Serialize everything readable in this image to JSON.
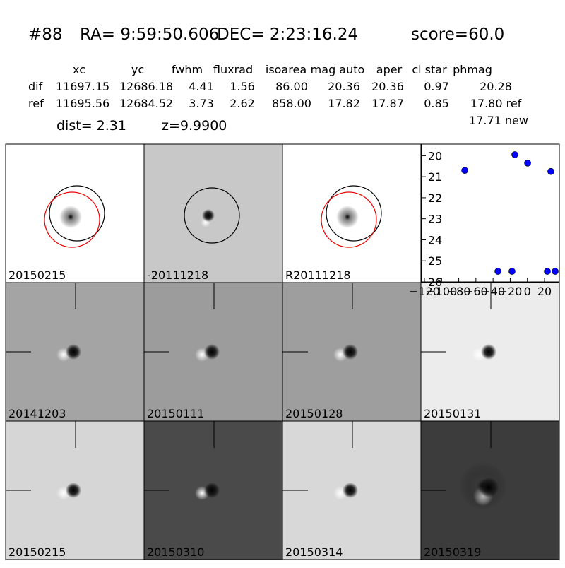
{
  "header": {
    "id": "#88",
    "ra": "RA= 9:59:50.606",
    "dec": "DEC= 2:23:16.24",
    "score": "score=60.0"
  },
  "table": {
    "columns": [
      "xc",
      "yc",
      "fwhm",
      "fluxrad",
      "isoarea",
      "mag auto",
      "aper",
      "cl star",
      "phmag"
    ],
    "rows": [
      [
        "dif",
        "11697.15",
        "12686.18",
        "4.41",
        "1.56",
        "86.00",
        "20.36",
        "20.36",
        "0.97",
        "20.28"
      ],
      [
        "ref",
        "11695.56",
        "12684.52",
        "3.73",
        "2.62",
        "858.00",
        "17.82",
        "17.87",
        "0.85",
        "17.80 ref"
      ]
    ]
  },
  "new_mag": "17.71 new",
  "dist": "dist=  2.31",
  "z": "z=9.9900",
  "stamps": [
    "20150215",
    "-20111218",
    "R20111218",
    "20141203",
    "20150111",
    "20150128",
    "20150131",
    "20150215",
    "20150310",
    "20150314",
    "20150319"
  ],
  "chart_data": {
    "type": "scatter",
    "color": "#0000ff",
    "x": [
      -73,
      -34.3,
      -17.9,
      -14.6,
      0.3,
      23.3,
      27.4,
      32.4
    ],
    "values": [
      20.7,
      25.5,
      25.5,
      19.95,
      20.35,
      25.5,
      20.75,
      25.5
    ],
    "xlim": [
      -123.3,
      37.3
    ],
    "ylim": [
      26,
      19.45
    ],
    "xticks": [
      {
        "value": -120,
        "label": "−120"
      },
      {
        "value": -100,
        "label": "−100"
      },
      {
        "value": -80,
        "label": "−80"
      },
      {
        "value": -60,
        "label": "−60"
      },
      {
        "value": -40,
        "label": "−40"
      },
      {
        "value": -20,
        "label": "−20"
      },
      0,
      20
    ],
    "yticks": [
      20,
      21,
      22,
      23,
      24,
      25,
      26
    ]
  }
}
